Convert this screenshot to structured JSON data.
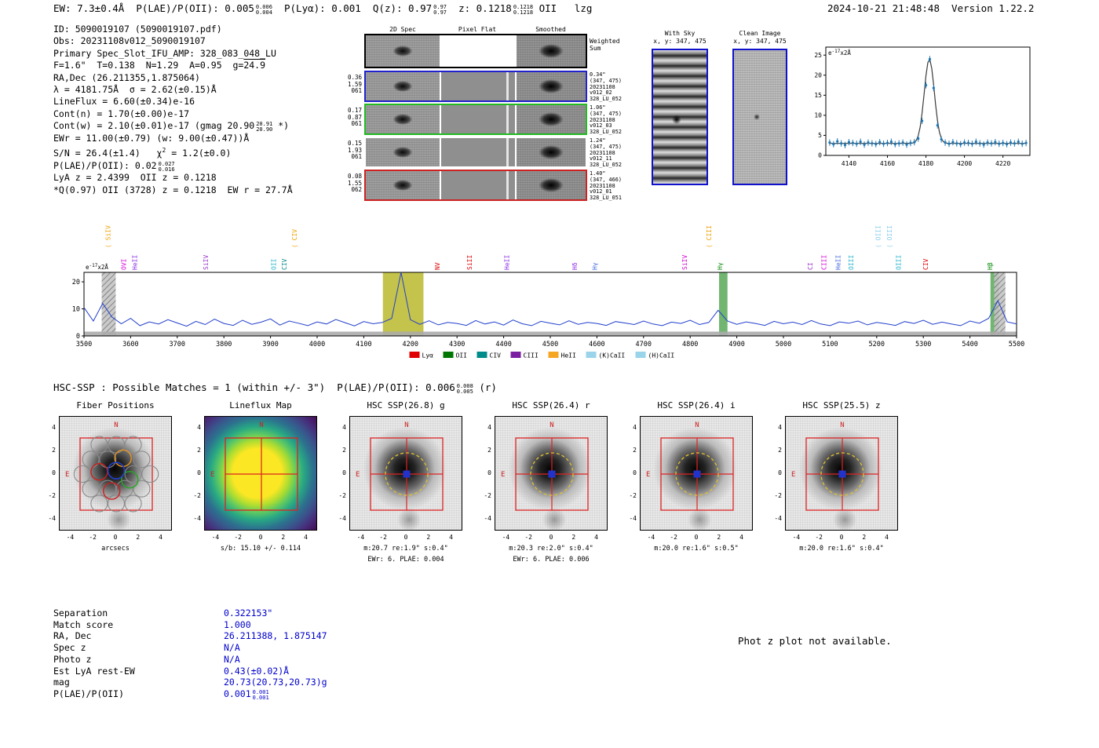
{
  "header": {
    "left_parts": [
      {
        "t": "EW: 7.3±0.4Å  P(LAE)/P(OII): 0.005"
      },
      {
        "stack": [
          "0.006",
          "0.004"
        ]
      },
      {
        "t": "  P(Lyα): 0.001  Q(z): 0.97"
      },
      {
        "stack": [
          "0.97",
          "0.97"
        ]
      },
      {
        "t": "  z: 0.1218"
      },
      {
        "stack": [
          "0.1218",
          "0.1218"
        ]
      },
      {
        "t": " OII   lzg"
      }
    ],
    "right": "2024-10-21 21:48:48  Version 1.22.2"
  },
  "info_lines": [
    [
      {
        "t": "ID: 5090019107 (5090019107.pdf)"
      }
    ],
    [
      {
        "t": "Obs: 20231108v012_5090019107"
      }
    ],
    [
      {
        "t": "Primary Spec_Slot_IFU_AMP: 328_083_048_LU"
      }
    ],
    [
      {
        "t": "F=1.6\"  T=0.138  N=1.29  A=0.95  g="
      },
      {
        "t": "24.9",
        "ol": true
      }
    ],
    [
      {
        "t": "RA,Dec (26.211355,1.875064)"
      }
    ],
    [
      {
        "t": "λ = 4181.75Å  σ = 2.62(±0.15)Å"
      }
    ],
    [
      {
        "t": "LineFlux = 6.60(±0.34)e-16"
      }
    ],
    [
      {
        "t": "Cont(n) = 1.70(±0.00)e-17"
      }
    ],
    [
      {
        "t": "Cont(w) = 2.10(±0.01)e-17 (gmag 20.90"
      },
      {
        "stack": [
          "20.91",
          "20.90"
        ]
      },
      {
        "t": " *)"
      }
    ],
    [
      {
        "t": "EWr = 11.00(±0.79) (w: 9.00(±0.47))Å"
      }
    ],
    [
      {
        "t": "S/N = 26.4(±1.4)   χ"
      },
      {
        "t": "2",
        "sup": true
      },
      {
        "t": " = 1.2(±0.0)"
      }
    ],
    [
      {
        "t": "P(LAE)/P(OII): 0.02"
      },
      {
        "stack": [
          "0.027",
          "0.016"
        ]
      }
    ],
    [
      {
        "t": "LyA z = 2.4399  OII z = 0.1218"
      }
    ],
    [
      {
        "t": "*Q(0.97) OII (3728) z = 0.1218  EW r = 27.7Å"
      }
    ]
  ],
  "spec2d": {
    "col_headers": [
      "2D Spec",
      "Pixel Flat",
      "Smoothed"
    ],
    "rows": [
      {
        "border": "#000000",
        "top": true,
        "left": [],
        "right": [
          "Weighted",
          "Sum"
        ]
      },
      {
        "border": "#2222cc",
        "left": [
          "0.36",
          "1.59",
          "061"
        ],
        "right": [
          "0.34\"",
          "(347, 475)",
          "20231108",
          "v012_02",
          "328_LU_052"
        ]
      },
      {
        "border": "#22bb22",
        "left": [
          "0.17",
          "0.87",
          "061"
        ],
        "right": [
          "1.06\"",
          "(347, 475)",
          "20231108",
          "v012_03",
          "328_LU_052"
        ]
      },
      {
        "border": "none",
        "left": [
          "0.15",
          "1.93",
          "061"
        ],
        "right": [
          "1.24\"",
          "(347, 475)",
          "20231108",
          "v012_11",
          "328_LU_052"
        ]
      },
      {
        "border": "#cc2222",
        "left": [
          "0.08",
          "1.55",
          "062"
        ],
        "right": [
          "1.40\"",
          "(347, 466)",
          "20231108",
          "v012_01",
          "328_LU_051"
        ]
      }
    ]
  },
  "withsky": {
    "title": "With Sky",
    "xy": "x, y: 347, 475"
  },
  "clean": {
    "title": "Clean Image",
    "xy": "x, y: 347, 475"
  },
  "chart_data": [
    {
      "id": "zoom_spectrum",
      "type": "scatter",
      "annotation": "e-17x2Å",
      "x_start": 4130,
      "x_step": 2,
      "values": [
        3.2,
        2.8,
        3.5,
        3.0,
        2.6,
        3.3,
        3.1,
        2.9,
        3.4,
        2.7,
        3.2,
        3.0,
        2.8,
        3.3,
        2.9,
        3.1,
        3.4,
        2.8,
        3.0,
        3.2,
        2.7,
        3.1,
        3.3,
        4.2,
        8.6,
        17.5,
        24.0,
        16.8,
        7.5,
        4.0,
        3.2,
        2.9,
        3.3,
        3.0,
        2.8,
        3.2,
        3.1,
        2.9,
        3.4,
        3.0,
        2.7,
        3.2,
        3.0,
        3.3,
        2.9,
        3.1,
        2.8,
        3.2,
        3.0,
        3.4,
        2.9,
        3.1
      ],
      "yerr": 0.8,
      "fit": {
        "center": 4181.75,
        "sigma": 2.62,
        "amplitude": 21.0,
        "baseline": 3.0
      },
      "xticks": [
        4140,
        4160,
        4180,
        4200,
        4220
      ],
      "yticks": [
        0,
        5,
        10,
        15,
        20,
        25
      ],
      "xlim": [
        4128,
        4234
      ],
      "ylim": [
        0,
        27
      ],
      "point_color": "#1f77b4",
      "fit_color": "#3a3a3a"
    },
    {
      "id": "full_spectrum",
      "type": "line",
      "annotation": "e-17x2Å",
      "x_start": 3500,
      "x_step": 20,
      "values": [
        10.5,
        5.5,
        12.0,
        7.0,
        4.5,
        6.5,
        3.8,
        5.2,
        4.4,
        6.0,
        4.8,
        3.6,
        5.4,
        4.2,
        6.2,
        4.6,
        3.9,
        5.8,
        4.3,
        5.1,
        6.3,
        4.0,
        5.5,
        4.7,
        3.8,
        5.2,
        4.4,
        6.1,
        4.9,
        3.7,
        5.3,
        4.5,
        5.0,
        6.5,
        24.0,
        6.0,
        4.3,
        5.6,
        4.1,
        5.0,
        4.6,
        3.9,
        5.7,
        4.4,
        5.2,
        4.0,
        5.9,
        4.5,
        3.8,
        5.4,
        4.7,
        4.1,
        5.6,
        4.3,
        5.0,
        4.6,
        3.9,
        5.3,
        4.8,
        4.2,
        5.5,
        4.4,
        3.8,
        5.1,
        4.6,
        5.8,
        4.2,
        5.0,
        9.5,
        5.5,
        4.3,
        5.2,
        4.6,
        3.9,
        5.4,
        4.5,
        5.1,
        4.2,
        5.7,
        4.4,
        3.8,
        5.2,
        4.7,
        5.5,
        4.1,
        5.0,
        4.5,
        3.9,
        5.3,
        4.6,
        5.8,
        4.3,
        5.1,
        4.4,
        3.8,
        5.5,
        4.7,
        6.5,
        13.0,
        5.2,
        4.4
      ],
      "err_band": 1.6,
      "xticks": [
        3500,
        3600,
        3700,
        3800,
        3900,
        4000,
        4100,
        4200,
        4300,
        4400,
        4500,
        4600,
        4700,
        4800,
        4900,
        5000,
        5100,
        5200,
        5300,
        5400,
        5500
      ],
      "yticks": [
        0,
        10,
        20
      ],
      "xlim": [
        3500,
        5500
      ],
      "ylim": [
        0,
        23.5
      ],
      "line_color": "#2240cc",
      "bands": [
        {
          "x0": 3538,
          "x1": 3568,
          "style": "hatch"
        },
        {
          "x0": 4141,
          "x1": 4228,
          "style": "solid",
          "color": "#b5b41e",
          "opacity": 0.8
        },
        {
          "x0": 4862,
          "x1": 4880,
          "style": "solid",
          "color": "#58a858",
          "opacity": 0.85
        },
        {
          "x0": 5444,
          "x1": 5462,
          "style": "solid",
          "color": "#58a858",
          "opacity": 0.85
        },
        {
          "x0": 5452,
          "x1": 5476,
          "style": "hatch"
        }
      ],
      "line_labels": [
        {
          "text": "( SiIV",
          "wl": 3556,
          "color": "#f0a000",
          "level": 2
        },
        {
          "text": "OVI",
          "wl": 3590,
          "color": "#d400d4",
          "level": 1
        },
        {
          "text": "HeII",
          "wl": 3614,
          "color": "#8a2be2",
          "level": 1
        },
        {
          "text": "SiIV",
          "wl": 3766,
          "color": "#9932cc",
          "level": 1
        },
        {
          "text": "OII",
          "wl": 3912,
          "color": "#20b2cc",
          "level": 1
        },
        {
          "text": "CIV",
          "wl": 3934,
          "color": "#008b8b",
          "level": 1
        },
        {
          "text": "( CIV",
          "wl": 3956,
          "color": "#f0a000",
          "level": 2
        },
        {
          "text": "NV",
          "wl": 4263,
          "color": "#dd0000",
          "level": 1
        },
        {
          "text": "SiII",
          "wl": 4332,
          "color": "#dd0000",
          "level": 1
        },
        {
          "text": "HeII",
          "wl": 4412,
          "color": "#8a2be2",
          "level": 1
        },
        {
          "text": "Hδ",
          "wl": 4557,
          "color": "#8a2be2",
          "level": 1
        },
        {
          "text": "Hγ",
          "wl": 4600,
          "color": "#4169e1",
          "level": 1
        },
        {
          "text": "SiIV",
          "wl": 4793,
          "color": "#d400d4",
          "level": 1
        },
        {
          "text": "( CIII",
          "wl": 4845,
          "color": "#f0a000",
          "level": 2
        },
        {
          "text": "Hγ",
          "wl": 4869,
          "color": "#008800",
          "level": 1
        },
        {
          "text": "CI",
          "wl": 5062,
          "color": "#9932cc",
          "level": 1
        },
        {
          "text": "CIII",
          "wl": 5092,
          "color": "#d400d4",
          "level": 1
        },
        {
          "text": "HeII",
          "wl": 5122,
          "color": "#4169e1",
          "level": 1
        },
        {
          "text": "OIII",
          "wl": 5150,
          "color": "#20b2cc",
          "level": 1
        },
        {
          "text": "( OIII",
          "wl": 5208,
          "color": "#87ceeb",
          "level": 2
        },
        {
          "text": "( OIII",
          "wl": 5232,
          "color": "#87ceeb",
          "level": 2
        },
        {
          "text": "OIII",
          "wl": 5252,
          "color": "#20b2cc",
          "level": 1
        },
        {
          "text": "CIV",
          "wl": 5310,
          "color": "#dd0000",
          "level": 1
        },
        {
          "text": "Hβ",
          "wl": 5448,
          "color": "#008800",
          "level": 1
        }
      ],
      "legend": [
        {
          "label": "Lyα",
          "color": "#e00000"
        },
        {
          "label": "OII",
          "color": "#007700"
        },
        {
          "label": "CIV",
          "color": "#008b8b"
        },
        {
          "label": "CIII",
          "color": "#7a1fa2"
        },
        {
          "label": "HeII",
          "color": "#f5a623"
        },
        {
          "label": "(K)CaII",
          "color": "#9ad4ea"
        },
        {
          "label": "(H)CaII",
          "color": "#9ad4ea"
        }
      ]
    }
  ],
  "cutouts": {
    "header_parts": [
      {
        "t": "HSC-SSP : Possible Matches = 1 (within +/- 3\")  P(LAE)/P(OII): 0.006"
      },
      {
        "stack": [
          "0.008",
          "0.005"
        ]
      },
      {
        "t": " (r)"
      }
    ],
    "axis_ticks": [
      "-4",
      "-2",
      "0",
      "2",
      "4"
    ],
    "compass": {
      "n": "N",
      "e": "E"
    },
    "panels": [
      {
        "title": "Fiber Positions",
        "type": "fiber",
        "xlabel": "arcsecs"
      },
      {
        "title": "Lineflux Map",
        "type": "lineflux",
        "caption1": "s/b: 15.10 +/- 0.114"
      },
      {
        "title": "HSC SSP(26.8) g",
        "type": "hsc",
        "caption1": "m:20.7 re:1.9\" s:0.4\"",
        "caption2": "EWr: 6. PLAE: 0.004"
      },
      {
        "title": "HSC SSP(26.4) r",
        "type": "hsc",
        "caption1": "m:20.3 re:2.0\" s:0.4\"",
        "caption2": "EWr: 6. PLAE: 0.006"
      },
      {
        "title": "HSC SSP(26.4) i",
        "type": "hsc",
        "caption1": "m:20.0 re:1.6\" s:0.5\""
      },
      {
        "title": "HSC SSP(25.5) z",
        "type": "hsc",
        "caption1": "m:20.0 re:1.6\" s:0.4\""
      }
    ]
  },
  "match": {
    "rows": [
      {
        "label": "Separation",
        "value": "0.322153\""
      },
      {
        "label": "Match score",
        "value": "1.000"
      },
      {
        "label": "RA, Dec",
        "value": "26.211388, 1.875147"
      },
      {
        "label": "Spec z",
        "value": "N/A"
      },
      {
        "label": "Photo z",
        "value": "N/A"
      },
      {
        "label": "Est LyA rest-EW",
        "value": "0.43(±0.02)Å"
      },
      {
        "label": "mag",
        "value": "20.73(20.73,20.73)g"
      },
      {
        "label": "P(LAE)/P(OII)",
        "value": "0.001",
        "stack": [
          "0.001",
          "0.001"
        ]
      }
    ],
    "note": "Phot z plot not available."
  }
}
